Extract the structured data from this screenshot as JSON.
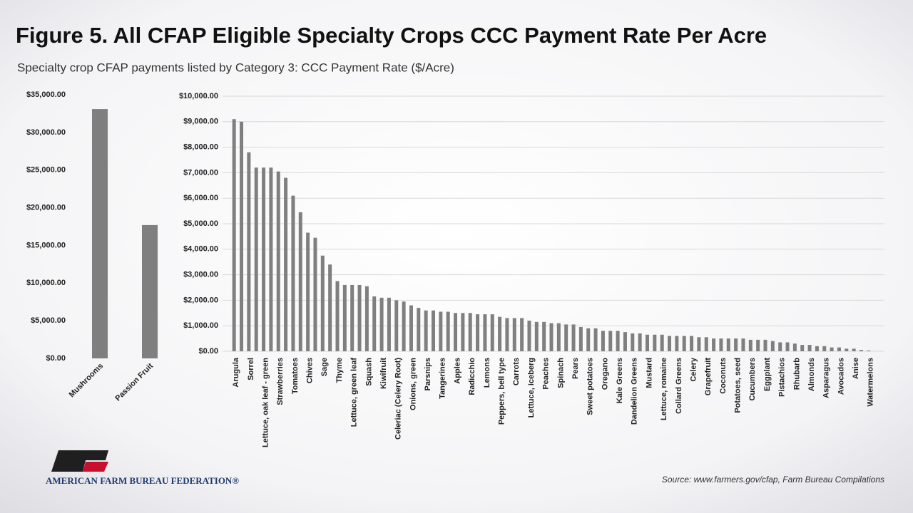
{
  "title": "Figure 5. All CFAP Eligible Specialty Crops CCC Payment Rate Per Acre",
  "subtitle": "Specialty crop CFAP payments listed by Category 3: CCC Payment Rate ($/Acre)",
  "source": "Source: www.farmers.gov/cfap, Farm Bureau Compilations",
  "logo_text": "AMERICAN FARM BUREAU FEDERATION®",
  "chart_data": [
    {
      "type": "bar",
      "color": "#7f7f7f",
      "grid": false,
      "categories": [
        "Mushrooms",
        "Passion Fruit"
      ],
      "values": [
        33100,
        17700
      ],
      "ylim": [
        0,
        35000
      ],
      "yticks": [
        {
          "value": 0,
          "label": "$0.00"
        },
        {
          "value": 5000,
          "label": "$5,000.00"
        },
        {
          "value": 10000,
          "label": "$10,000.00"
        },
        {
          "value": 15000,
          "label": "$15,000.00"
        },
        {
          "value": 20000,
          "label": "$20,000.00"
        },
        {
          "value": 25000,
          "label": "$25,000.00"
        },
        {
          "value": 30000,
          "label": "$30,000.00"
        },
        {
          "value": 35000,
          "label": "$35,000.00"
        }
      ]
    },
    {
      "type": "bar",
      "color": "#7f7f7f",
      "grid": true,
      "categories": [
        "Arugula",
        null,
        "Sorrel",
        null,
        "Lettuce, oak leaf - green",
        null,
        "Strawberries",
        null,
        "Tomatoes",
        null,
        "Chives",
        null,
        "Sage",
        null,
        "Thyme",
        null,
        "Lettuce, green leaf",
        null,
        "Squash",
        null,
        "Kiwifruit",
        null,
        "Celeriac (Celery Root)",
        null,
        "Onions, green",
        null,
        "Parsnips",
        null,
        "Tangerines",
        null,
        "Apples",
        null,
        "Radicchio",
        null,
        "Lemons",
        null,
        "Peppers, bell type",
        null,
        "Carrots",
        null,
        "Lettuce, iceberg",
        null,
        "Peaches",
        null,
        "Spinach",
        null,
        "Pears",
        null,
        "Sweet potatoes",
        null,
        "Oregano",
        null,
        "Kale Greens",
        null,
        "Dandelion Greens",
        null,
        "Mustard",
        null,
        "Lettuce, romaine",
        null,
        "Collard Greens",
        null,
        "Celery",
        null,
        "Grapefruit",
        null,
        "Coconuts",
        null,
        "Potatoes, seed",
        null,
        "Cucumbers",
        null,
        "Eggplant",
        null,
        "Pistachios",
        null,
        "Rhubarb",
        null,
        "Almonds",
        null,
        "Asparagus",
        null,
        "Avocados",
        null,
        "Anise",
        null,
        "Watermelons"
      ],
      "values": [
        9100,
        9000,
        7800,
        7200,
        7200,
        7200,
        7050,
        6800,
        6100,
        5450,
        4650,
        4450,
        3750,
        3400,
        2750,
        2600,
        2600,
        2600,
        2550,
        2150,
        2100,
        2100,
        2000,
        1950,
        1800,
        1700,
        1600,
        1600,
        1550,
        1550,
        1500,
        1500,
        1500,
        1450,
        1450,
        1450,
        1350,
        1300,
        1300,
        1300,
        1200,
        1150,
        1150,
        1100,
        1100,
        1050,
        1050,
        950,
        900,
        900,
        800,
        800,
        800,
        750,
        700,
        700,
        650,
        650,
        650,
        600,
        600,
        600,
        600,
        550,
        550,
        500,
        500,
        500,
        500,
        500,
        450,
        450,
        450,
        400,
        350,
        350,
        300,
        250,
        250,
        200,
        200,
        150,
        150,
        100,
        100,
        50,
        30
      ],
      "ylim": [
        0,
        10000
      ],
      "yticks": [
        {
          "value": 0,
          "label": "$0.00"
        },
        {
          "value": 1000,
          "label": "$1,000.00"
        },
        {
          "value": 2000,
          "label": "$2,000.00"
        },
        {
          "value": 3000,
          "label": "$3,000.00"
        },
        {
          "value": 4000,
          "label": "$4,000.00"
        },
        {
          "value": 5000,
          "label": "$5,000.00"
        },
        {
          "value": 6000,
          "label": "$6,000.00"
        },
        {
          "value": 7000,
          "label": "$7,000.00"
        },
        {
          "value": 8000,
          "label": "$8,000.00"
        },
        {
          "value": 9000,
          "label": "$9,000.00"
        },
        {
          "value": 10000,
          "label": "$10,000.00"
        }
      ]
    }
  ]
}
